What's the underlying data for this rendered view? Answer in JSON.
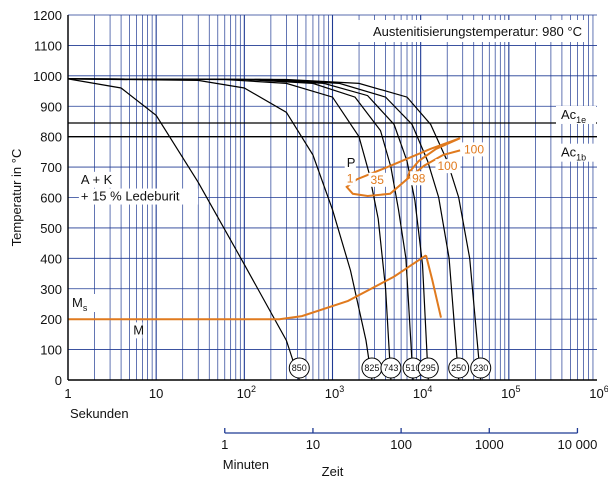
{
  "chart_data": {
    "type": "line",
    "title": "Austenitisierungstemperatur: 980 °C",
    "ylabel": "Temperatur in °C",
    "xlabel": "Zeit",
    "x_scale": "log",
    "xlim": [
      1,
      1000000
    ],
    "ylim": [
      0,
      1200
    ],
    "grid": true,
    "y_ticks": [
      0,
      100,
      200,
      300,
      400,
      500,
      600,
      700,
      800,
      900,
      1000,
      1100,
      1200
    ],
    "x_ticks_seconds": [
      {
        "value": 1,
        "base": "1",
        "exp": ""
      },
      {
        "value": 10,
        "base": "10",
        "exp": ""
      },
      {
        "value": 100,
        "base": "10",
        "exp": "2"
      },
      {
        "value": 1000,
        "base": "10",
        "exp": "3"
      },
      {
        "value": 10000,
        "base": "10",
        "exp": "4"
      },
      {
        "value": 100000,
        "base": "10",
        "exp": "5"
      },
      {
        "value": 1000000,
        "base": "10",
        "exp": "6"
      }
    ],
    "x_unit_seconds": "Sekunden",
    "x_ticks_minutes": [
      {
        "value_min": 1,
        "label": "1"
      },
      {
        "value_min": 10,
        "label": "10"
      },
      {
        "value_min": 100,
        "label": "100"
      },
      {
        "value_min": 1000,
        "label": "1000"
      },
      {
        "value_min": 10000,
        "label": "10 000"
      }
    ],
    "x_unit_minutes": "Minuten",
    "critical_temperatures": [
      {
        "name": "Ac",
        "sub": "1e",
        "value": 845
      },
      {
        "name": "Ac",
        "sub": "1b",
        "value": 800
      }
    ],
    "ms_label": {
      "name": "M",
      "sub": "s"
    },
    "martensite_line": [
      [
        1,
        200
      ],
      [
        250,
        200
      ],
      [
        450,
        210
      ],
      [
        1500,
        260
      ],
      [
        5000,
        340
      ],
      [
        11500,
        410
      ]
    ],
    "martensite_drop": [
      [
        11500,
        410
      ],
      [
        13500,
        330
      ],
      [
        17000,
        205
      ]
    ],
    "cooling_curves": [
      {
        "hardness": "850",
        "points": [
          [
            1,
            990
          ],
          [
            4,
            960
          ],
          [
            10,
            870
          ],
          [
            30,
            650
          ],
          [
            100,
            380
          ],
          [
            300,
            130
          ],
          [
            420,
            0
          ]
        ]
      },
      {
        "hardness": "825",
        "points": [
          [
            1,
            990
          ],
          [
            30,
            985
          ],
          [
            100,
            960
          ],
          [
            300,
            880
          ],
          [
            600,
            740
          ],
          [
            1000,
            560
          ],
          [
            1600,
            360
          ],
          [
            2400,
            130
          ],
          [
            2800,
            0
          ]
        ]
      },
      {
        "hardness": "743",
        "points": [
          [
            1,
            990
          ],
          [
            60,
            988
          ],
          [
            300,
            975
          ],
          [
            1000,
            930
          ],
          [
            2000,
            800
          ],
          [
            2600,
            680
          ],
          [
            3300,
            530
          ],
          [
            4000,
            300
          ],
          [
            4600,
            0
          ]
        ]
      },
      {
        "hardness": "510",
        "points": [
          [
            1,
            990
          ],
          [
            100,
            988
          ],
          [
            600,
            975
          ],
          [
            1800,
            930
          ],
          [
            3500,
            820
          ],
          [
            4600,
            700
          ],
          [
            5600,
            560
          ],
          [
            6800,
            400
          ],
          [
            8200,
            0
          ]
        ]
      },
      {
        "hardness": "295",
        "points": [
          [
            1,
            990
          ],
          [
            150,
            988
          ],
          [
            800,
            975
          ],
          [
            2500,
            935
          ],
          [
            5000,
            840
          ],
          [
            7000,
            720
          ],
          [
            8600,
            590
          ],
          [
            10500,
            380
          ],
          [
            12200,
            0
          ]
        ]
      },
      {
        "hardness": "250",
        "points": [
          [
            1,
            990
          ],
          [
            200,
            988
          ],
          [
            1200,
            975
          ],
          [
            4000,
            930
          ],
          [
            8000,
            840
          ],
          [
            12000,
            720
          ],
          [
            16000,
            600
          ],
          [
            21000,
            400
          ],
          [
            27000,
            0
          ]
        ]
      },
      {
        "hardness": "230",
        "points": [
          [
            1,
            990
          ],
          [
            300,
            988
          ],
          [
            2000,
            975
          ],
          [
            7000,
            930
          ],
          [
            13000,
            840
          ],
          [
            20000,
            720
          ],
          [
            27000,
            600
          ],
          [
            36000,
            400
          ],
          [
            48000,
            0
          ]
        ]
      }
    ],
    "pearlite_start": [
      [
        28000,
        795
      ],
      [
        13000,
        760
      ],
      [
        4200,
        700
      ],
      [
        1900,
        660
      ],
      [
        1450,
        635
      ],
      [
        1700,
        612
      ],
      [
        2500,
        605
      ],
      [
        4500,
        612
      ],
      [
        7000,
        660
      ],
      [
        11000,
        705
      ],
      [
        18000,
        740
      ],
      [
        28000,
        755
      ]
    ],
    "pearlite_end": [
      [
        28000,
        795
      ],
      [
        15000,
        760
      ],
      [
        9500,
        720
      ],
      [
        7500,
        685
      ],
      [
        7000,
        660
      ]
    ],
    "region_labels": [
      {
        "text": "A + K",
        "x": 1.4,
        "y": 645
      },
      {
        "text": "+ 15 % Ledeburit",
        "x": 1.4,
        "y": 590
      },
      {
        "text": "M",
        "x": 5.5,
        "y": 150
      },
      {
        "text": "P",
        "x": 1450,
        "y": 700
      }
    ],
    "percent_labels": [
      {
        "text": "1",
        "x": 1450,
        "y": 650
      },
      {
        "text": "35",
        "x": 2700,
        "y": 645
      },
      {
        "text": "98",
        "x": 8000,
        "y": 650
      },
      {
        "text": "100",
        "x": 15500,
        "y": 690
      },
      {
        "text": "100",
        "x": 31000,
        "y": 745
      }
    ],
    "colors": {
      "grid": "#1f3a93",
      "curve": "#000000",
      "orange": "#e07a1e",
      "axis": "#000000"
    }
  }
}
